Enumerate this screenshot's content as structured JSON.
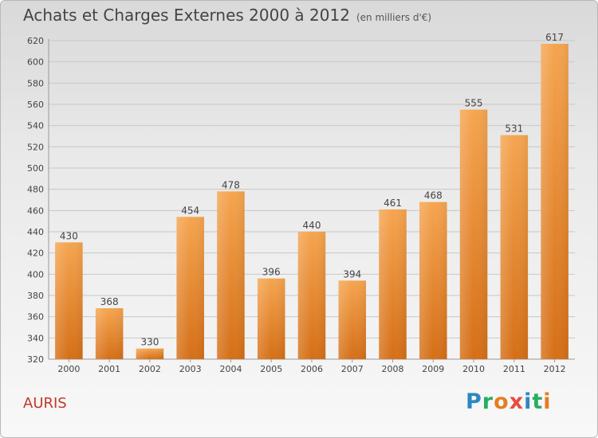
{
  "page": {
    "title": "Achats et Charges Externes 2000 à 2012",
    "subtitle": "(en milliers d'€)",
    "commune": "AURIS",
    "logo_letters": [
      "P",
      "r",
      "o",
      "x",
      "i",
      "t",
      "i"
    ],
    "logo_colors": [
      "#2e86c1",
      "#27ae60",
      "#e67e22",
      "#e74c3c",
      "#2e86c1",
      "#27ae60",
      "#e67e22"
    ]
  },
  "colors": {
    "bar_top": "#f5a550",
    "bar_bottom": "#d56f17",
    "grid": "#c8c8c8",
    "text": "#444444",
    "commune": "#c0392b"
  },
  "chart_data": {
    "type": "bar",
    "categories": [
      "2000",
      "2001",
      "2002",
      "2003",
      "2004",
      "2005",
      "2006",
      "2007",
      "2008",
      "2009",
      "2010",
      "2011",
      "2012"
    ],
    "values": [
      430,
      368,
      330,
      454,
      478,
      396,
      440,
      394,
      461,
      468,
      555,
      531,
      617
    ],
    "title": "Achats et Charges Externes 2000 à 2012",
    "subtitle": "(en milliers d'€)",
    "xlabel": "",
    "ylabel": "",
    "ylim": [
      320,
      620
    ],
    "yticks": [
      320,
      340,
      360,
      380,
      400,
      420,
      440,
      460,
      480,
      500,
      520,
      540,
      560,
      580,
      600,
      620
    ],
    "grid": true,
    "legend": "none"
  }
}
